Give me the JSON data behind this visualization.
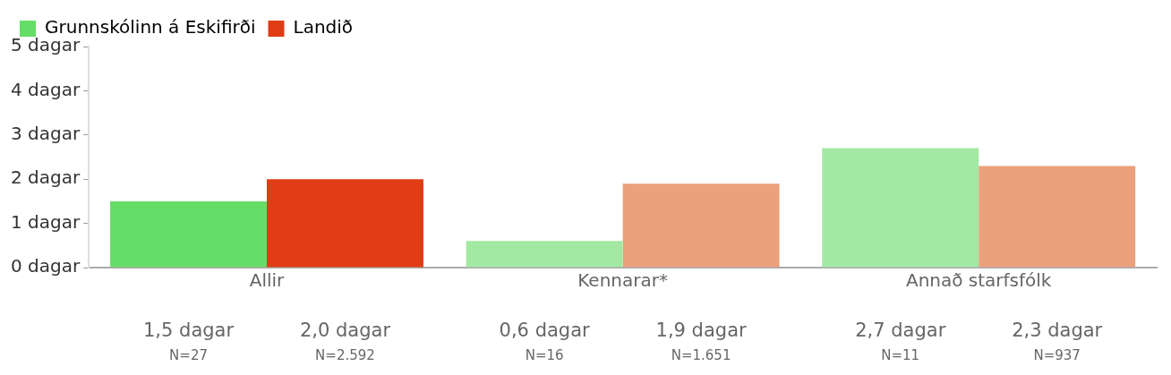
{
  "chart_data": {
    "type": "bar",
    "categories": [
      "Allir",
      "Kennarar*",
      "Annað starfsfólk"
    ],
    "series": [
      {
        "name": "Grunnskólinn á Eskifirði",
        "color": "#66dd66",
        "colors": [
          "#66dd66",
          "#a3e8a3",
          "#a3e8a3"
        ],
        "values": [
          1.5,
          0.6,
          2.7
        ],
        "value_labels": [
          "1,5 dagar\nN=27",
          "0,6 dagar\nN=16",
          "2,7 dagar\nN=11"
        ]
      },
      {
        "name": "Landið",
        "color": "#e03c16",
        "colors": [
          "#e03c16",
          "#eca07c",
          "#eca07c"
        ],
        "values": [
          2.0,
          1.9,
          2.3
        ],
        "value_labels": [
          "2,0 dagar\nN=2.592",
          "1,9 dagar\nN=1.651",
          "2,3 dagar\nN=937"
        ]
      }
    ],
    "ylim": [
      0,
      5
    ],
    "yticks": [
      {
        "value": 0,
        "label": "0 dagar"
      },
      {
        "value": 1,
        "label": "1 dagar"
      },
      {
        "value": 2,
        "label": "2 dagar"
      },
      {
        "value": 3,
        "label": "3 dagar"
      },
      {
        "value": 4,
        "label": "4 dagar"
      },
      {
        "value": 5,
        "label": "5 dagar"
      }
    ],
    "grid": false,
    "legend": "top left"
  }
}
